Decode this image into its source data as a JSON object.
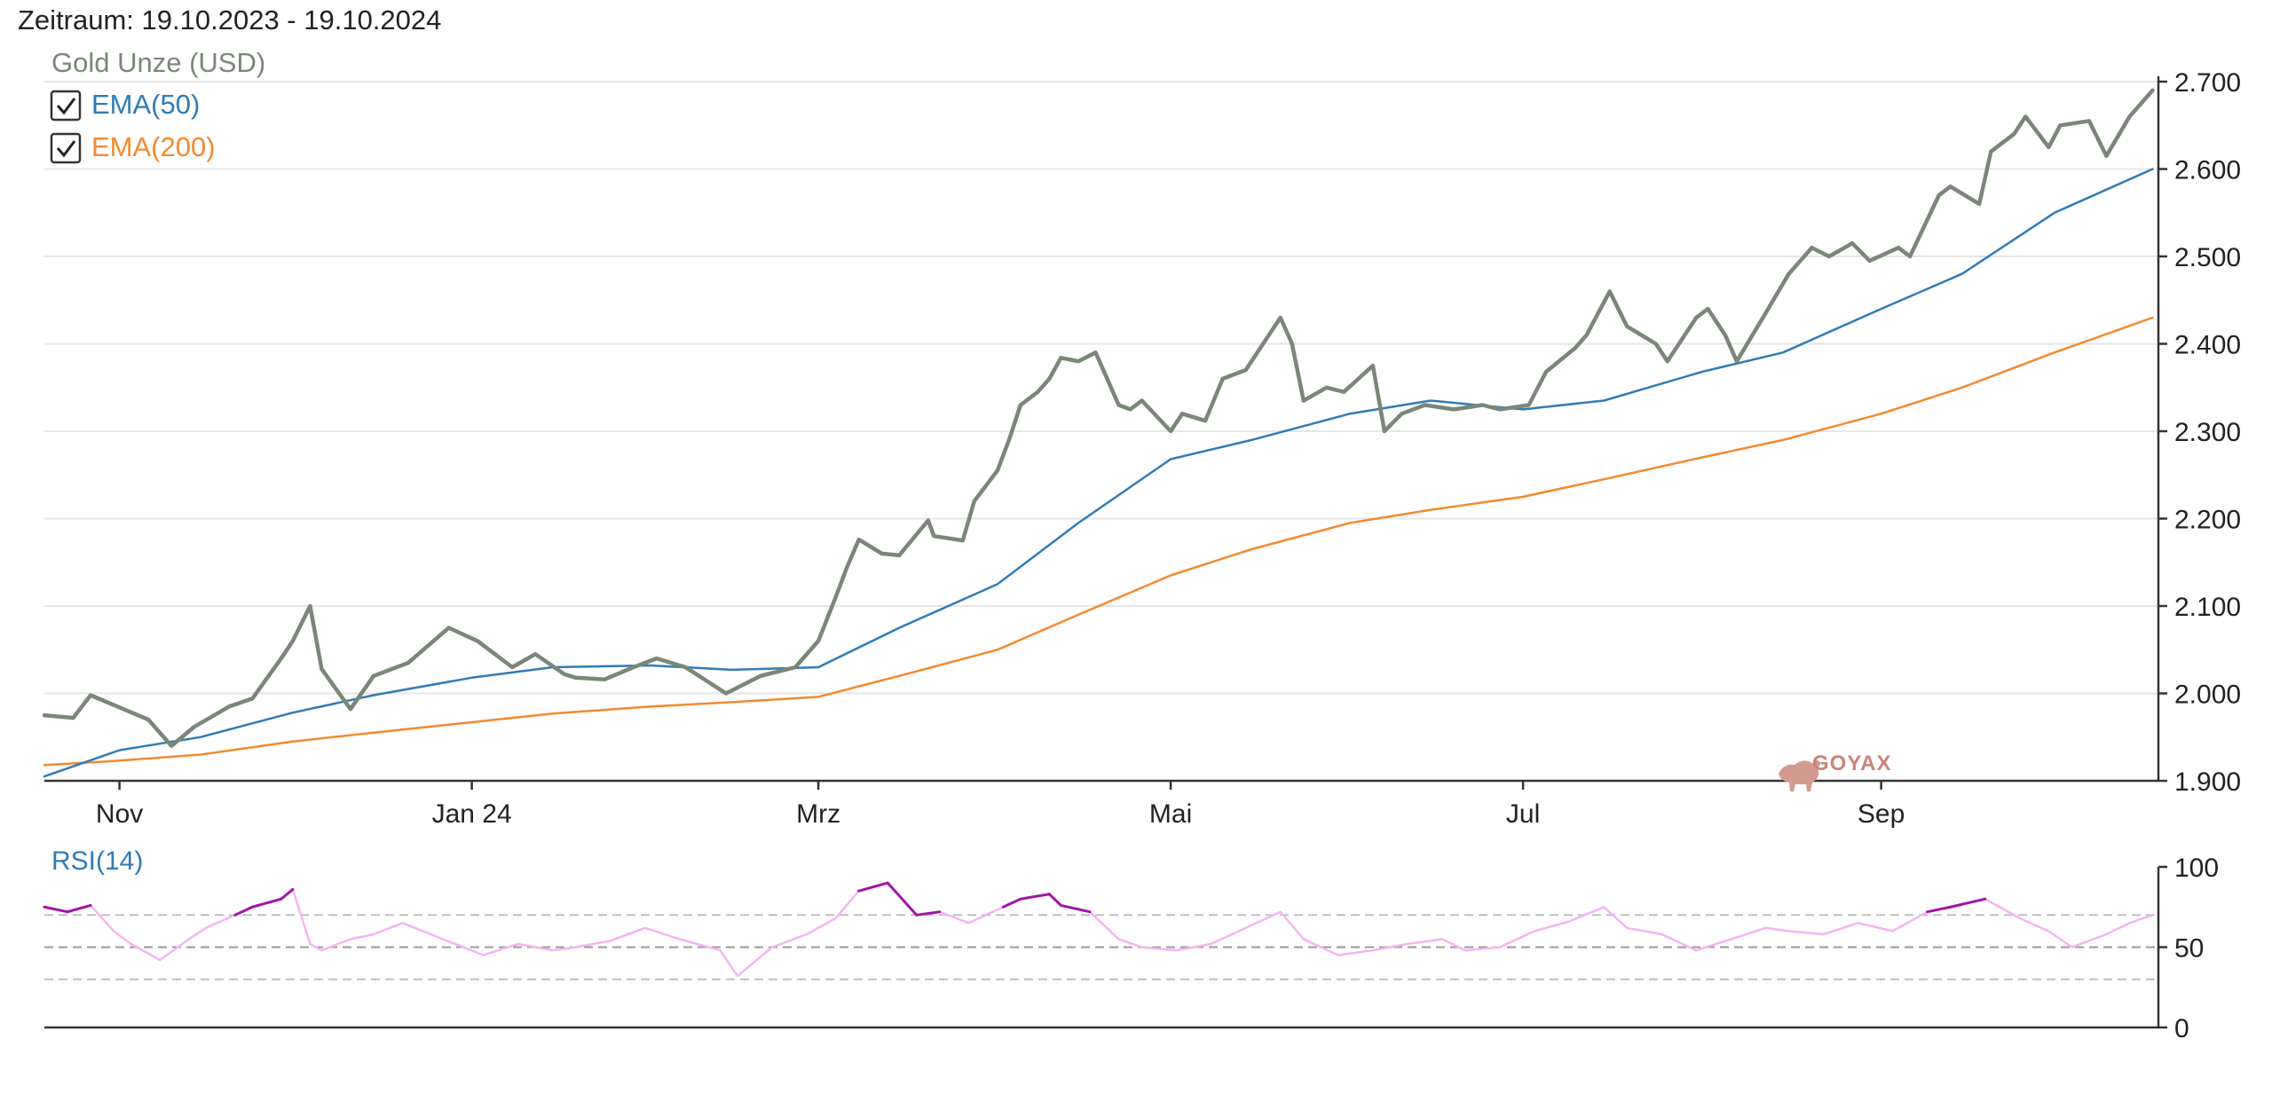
{
  "period_label": "Zeitraum: 19.10.2023 - 19.10.2024",
  "colors": {
    "price": "#7a8778",
    "ema50": "#2f7cb5",
    "ema200": "#f28a2e",
    "rsi": "#f2b6f0",
    "rsi_over": "#a312a8",
    "grid": "#e6e6e6",
    "axis": "#333333",
    "ref_dash": "#bfbfbf",
    "mid_dash": "#999999",
    "watermark": "#c9857a"
  },
  "legend": {
    "instrument": "Gold Unze (USD)",
    "ema50_label": "EMA(50)",
    "ema200_label": "EMA(200)",
    "ema50_checked": true,
    "ema200_checked": true
  },
  "watermark": "GOYAX",
  "chart_data": [
    {
      "type": "line",
      "title": "",
      "xlabel": "",
      "ylabel": "",
      "x_start": "2023-10-19",
      "x_end": "2024-10-19",
      "x_ticks": [
        {
          "date": "2023-11-01",
          "label": "Nov"
        },
        {
          "date": "2024-01-01",
          "label": "Jan 24"
        },
        {
          "date": "2024-03-01",
          "label": "Mrz"
        },
        {
          "date": "2024-05-01",
          "label": "Mai"
        },
        {
          "date": "2024-07-01",
          "label": "Jul"
        },
        {
          "date": "2024-09-01",
          "label": "Sep"
        }
      ],
      "ylim": [
        1900,
        2700
      ],
      "y_ticks": [
        {
          "value": 1900,
          "label": "1.900"
        },
        {
          "value": 2000,
          "label": "2.000"
        },
        {
          "value": 2100,
          "label": "2.100"
        },
        {
          "value": 2200,
          "label": "2.200"
        },
        {
          "value": 2300,
          "label": "2.300"
        },
        {
          "value": 2400,
          "label": "2.400"
        },
        {
          "value": 2500,
          "label": "2.500"
        },
        {
          "value": 2600,
          "label": "2.600"
        },
        {
          "value": 2700,
          "label": "2.700"
        }
      ],
      "grid": true,
      "legend_position": "top-left",
      "series": [
        {
          "name": "Gold Unze (USD)",
          "key": "price",
          "x": [
            "2023-10-19",
            "2023-10-24",
            "2023-10-27",
            "2023-11-01",
            "2023-11-06",
            "2023-11-10",
            "2023-11-14",
            "2023-11-20",
            "2023-11-24",
            "2023-11-29",
            "2023-12-01",
            "2023-12-04",
            "2023-12-06",
            "2023-12-11",
            "2023-12-15",
            "2023-12-21",
            "2023-12-28",
            "2024-01-02",
            "2024-01-08",
            "2024-01-12",
            "2024-01-17",
            "2024-01-19",
            "2024-01-24",
            "2024-01-29",
            "2024-02-02",
            "2024-02-07",
            "2024-02-14",
            "2024-02-20",
            "2024-02-26",
            "2024-03-01",
            "2024-03-04",
            "2024-03-06",
            "2024-03-08",
            "2024-03-12",
            "2024-03-15",
            "2024-03-20",
            "2024-03-21",
            "2024-03-26",
            "2024-03-28",
            "2024-04-01",
            "2024-04-03",
            "2024-04-05",
            "2024-04-08",
            "2024-04-10",
            "2024-04-12",
            "2024-04-15",
            "2024-04-18",
            "2024-04-22",
            "2024-04-24",
            "2024-04-26",
            "2024-05-01",
            "2024-05-03",
            "2024-05-07",
            "2024-05-10",
            "2024-05-14",
            "2024-05-17",
            "2024-05-20",
            "2024-05-22",
            "2024-05-24",
            "2024-05-28",
            "2024-05-31",
            "2024-06-05",
            "2024-06-07",
            "2024-06-10",
            "2024-06-14",
            "2024-06-19",
            "2024-06-24",
            "2024-06-27",
            "2024-07-02",
            "2024-07-05",
            "2024-07-10",
            "2024-07-12",
            "2024-07-16",
            "2024-07-19",
            "2024-07-24",
            "2024-07-26",
            "2024-07-31",
            "2024-08-02",
            "2024-08-05",
            "2024-08-07",
            "2024-08-12",
            "2024-08-16",
            "2024-08-20",
            "2024-08-23",
            "2024-08-27",
            "2024-08-30",
            "2024-09-04",
            "2024-09-06",
            "2024-09-11",
            "2024-09-13",
            "2024-09-18",
            "2024-09-20",
            "2024-09-24",
            "2024-09-26",
            "2024-09-30",
            "2024-10-02",
            "2024-10-07",
            "2024-10-10",
            "2024-10-14",
            "2024-10-16",
            "2024-10-18"
          ],
          "values": [
            1975,
            1972,
            1998,
            1984,
            1970,
            1940,
            1962,
            1985,
            1994,
            2040,
            2060,
            2100,
            2028,
            1982,
            2020,
            2035,
            2075,
            2060,
            2030,
            2045,
            2022,
            2018,
            2016,
            2030,
            2040,
            2030,
            2000,
            2020,
            2030,
            2060,
            2110,
            2145,
            2176,
            2160,
            2158,
            2198,
            2180,
            2175,
            2220,
            2255,
            2290,
            2330,
            2345,
            2360,
            2384,
            2380,
            2390,
            2330,
            2325,
            2335,
            2300,
            2320,
            2312,
            2360,
            2370,
            2400,
            2430,
            2400,
            2335,
            2350,
            2345,
            2375,
            2300,
            2320,
            2330,
            2325,
            2330,
            2325,
            2330,
            2368,
            2395,
            2410,
            2460,
            2420,
            2400,
            2380,
            2430,
            2440,
            2410,
            2380,
            2435,
            2480,
            2510,
            2500,
            2515,
            2495,
            2510,
            2500,
            2570,
            2580,
            2560,
            2620,
            2640,
            2660,
            2625,
            2650,
            2655,
            2615,
            2660,
            2675,
            2690
          ]
        },
        {
          "name": "EMA(50)",
          "key": "ema50",
          "x": [
            "2023-10-19",
            "2023-11-01",
            "2023-11-15",
            "2023-12-01",
            "2023-12-15",
            "2024-01-01",
            "2024-01-15",
            "2024-02-01",
            "2024-02-15",
            "2024-03-01",
            "2024-03-15",
            "2024-04-01",
            "2024-04-15",
            "2024-05-01",
            "2024-05-15",
            "2024-06-01",
            "2024-06-15",
            "2024-07-01",
            "2024-07-15",
            "2024-08-01",
            "2024-08-15",
            "2024-09-01",
            "2024-09-15",
            "2024-10-01",
            "2024-10-18"
          ],
          "values": [
            1905,
            1935,
            1950,
            1978,
            1998,
            2018,
            2030,
            2032,
            2027,
            2030,
            2075,
            2125,
            2195,
            2268,
            2290,
            2320,
            2335,
            2325,
            2335,
            2368,
            2390,
            2440,
            2480,
            2550,
            2600
          ]
        },
        {
          "name": "EMA(200)",
          "key": "ema200",
          "x": [
            "2023-10-19",
            "2023-11-01",
            "2023-11-15",
            "2023-12-01",
            "2023-12-15",
            "2024-01-01",
            "2024-01-15",
            "2024-02-01",
            "2024-02-15",
            "2024-03-01",
            "2024-03-15",
            "2024-04-01",
            "2024-04-15",
            "2024-05-01",
            "2024-05-15",
            "2024-06-01",
            "2024-06-15",
            "2024-07-01",
            "2024-07-15",
            "2024-08-01",
            "2024-08-15",
            "2024-09-01",
            "2024-09-15",
            "2024-10-01",
            "2024-10-18"
          ],
          "values": [
            1918,
            1923,
            1930,
            1945,
            1955,
            1967,
            1977,
            1985,
            1990,
            1996,
            2020,
            2050,
            2090,
            2135,
            2165,
            2195,
            2210,
            2225,
            2245,
            2270,
            2290,
            2320,
            2350,
            2390,
            2430
          ]
        }
      ]
    },
    {
      "type": "line",
      "title": "RSI(14)",
      "xlabel": "",
      "ylabel": "",
      "ylim": [
        0,
        100
      ],
      "y_ticks": [
        {
          "value": 0,
          "label": "0"
        },
        {
          "value": 50,
          "label": "50"
        },
        {
          "value": 100,
          "label": "100"
        }
      ],
      "reference_lines": [
        30,
        50,
        70
      ],
      "overbought": 70,
      "series": [
        {
          "name": "RSI(14)",
          "key": "rsi",
          "x": [
            "2023-10-19",
            "2023-10-23",
            "2023-10-27",
            "2023-10-31",
            "2023-11-03",
            "2023-11-08",
            "2023-11-13",
            "2023-11-16",
            "2023-11-21",
            "2023-11-24",
            "2023-11-29",
            "2023-12-01",
            "2023-12-04",
            "2023-12-06",
            "2023-12-11",
            "2023-12-15",
            "2023-12-20",
            "2023-12-27",
            "2024-01-03",
            "2024-01-09",
            "2024-01-15",
            "2024-01-19",
            "2024-01-25",
            "2024-01-31",
            "2024-02-06",
            "2024-02-13",
            "2024-02-16",
            "2024-02-22",
            "2024-02-28",
            "2024-03-04",
            "2024-03-08",
            "2024-03-13",
            "2024-03-18",
            "2024-03-22",
            "2024-03-27",
            "2024-04-02",
            "2024-04-05",
            "2024-04-10",
            "2024-04-12",
            "2024-04-17",
            "2024-04-22",
            "2024-04-26",
            "2024-05-02",
            "2024-05-08",
            "2024-05-14",
            "2024-05-20",
            "2024-05-24",
            "2024-05-30",
            "2024-06-05",
            "2024-06-11",
            "2024-06-17",
            "2024-06-21",
            "2024-06-27",
            "2024-07-03",
            "2024-07-09",
            "2024-07-15",
            "2024-07-19",
            "2024-07-25",
            "2024-07-31",
            "2024-08-06",
            "2024-08-12",
            "2024-08-16",
            "2024-08-22",
            "2024-08-28",
            "2024-09-03",
            "2024-09-09",
            "2024-09-13",
            "2024-09-19",
            "2024-09-25",
            "2024-09-30",
            "2024-10-04",
            "2024-10-10",
            "2024-10-14",
            "2024-10-18"
          ],
          "values": [
            75,
            72,
            76,
            60,
            52,
            42,
            55,
            62,
            70,
            75,
            80,
            86,
            52,
            48,
            55,
            58,
            65,
            55,
            45,
            52,
            48,
            50,
            54,
            62,
            55,
            48,
            32,
            50,
            58,
            68,
            85,
            90,
            70,
            72,
            65,
            75,
            80,
            83,
            76,
            72,
            55,
            50,
            48,
            52,
            62,
            72,
            55,
            45,
            48,
            52,
            55,
            48,
            50,
            60,
            66,
            75,
            62,
            58,
            48,
            55,
            62,
            60,
            58,
            65,
            60,
            72,
            75,
            80,
            68,
            60,
            50,
            58,
            65,
            70
          ]
        }
      ]
    }
  ]
}
